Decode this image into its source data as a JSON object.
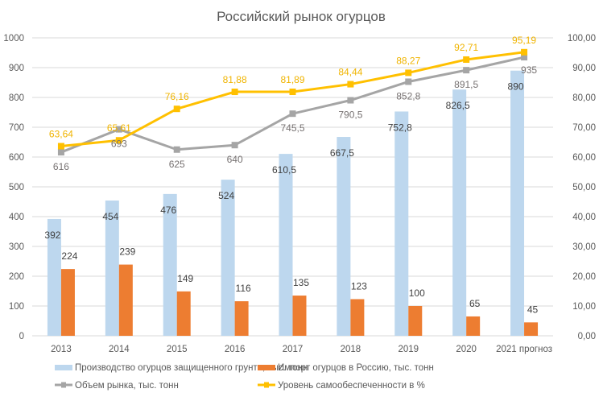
{
  "chart_data": {
    "type": "bar",
    "title": "Российский рынок огурцов",
    "categories": [
      "2013",
      "2014",
      "2015",
      "2016",
      "2017",
      "2018",
      "2019",
      "2020",
      "2021 прогноз"
    ],
    "left_axis": {
      "ylim": [
        0,
        1000
      ],
      "ticks": [
        "0",
        "100",
        "200",
        "300",
        "400",
        "500",
        "600",
        "700",
        "800",
        "900",
        "1000"
      ]
    },
    "right_axis": {
      "ylim": [
        0,
        100
      ],
      "ticks": [
        "0,00",
        "10,00",
        "20,00",
        "30,00",
        "40,00",
        "50,00",
        "60,00",
        "70,00",
        "80,00",
        "90,00",
        "100,00"
      ]
    },
    "grid": true,
    "legend_position": "bottom",
    "series": [
      {
        "name": "Производство огурцов защищенного грунта, тыс. тонн",
        "type": "bar",
        "axis": "left",
        "color": "#bdd7ee",
        "values": [
          392,
          454,
          476,
          524,
          610.5,
          667.5,
          752.8,
          826.5,
          890
        ],
        "labels": [
          "392",
          "454",
          "476",
          "524",
          "610,5",
          "667,5",
          "752,8",
          "826,5",
          "890"
        ]
      },
      {
        "name": "Импорт огурцов в Россию, тыс. тонн",
        "type": "bar",
        "axis": "left",
        "color": "#ed7d31",
        "values": [
          224,
          239,
          149,
          116,
          135,
          123,
          100,
          65,
          45
        ],
        "labels": [
          "224",
          "239",
          "149",
          "116",
          "135",
          "123",
          "100",
          "65",
          "45"
        ]
      },
      {
        "name": "Объем рынка, тыс. тонн",
        "type": "line",
        "axis": "left",
        "color": "#a5a5a5",
        "values": [
          616,
          693,
          625,
          640,
          745.5,
          790.5,
          852.8,
          891.5,
          935
        ],
        "labels": [
          "616",
          "693",
          "625",
          "640",
          "745,5",
          "790,5",
          "852,8",
          "891,5",
          "935"
        ]
      },
      {
        "name": "Уровень самообеспеченности в %",
        "type": "line",
        "axis": "right",
        "color": "#ffc000",
        "values": [
          63.64,
          65.61,
          76.16,
          81.88,
          81.89,
          84.44,
          88.27,
          92.71,
          95.19
        ],
        "labels": [
          "63,64",
          "65,61",
          "76,16",
          "81,88",
          "81,89",
          "84,44",
          "88,27",
          "92,71",
          "95,19"
        ]
      }
    ]
  }
}
